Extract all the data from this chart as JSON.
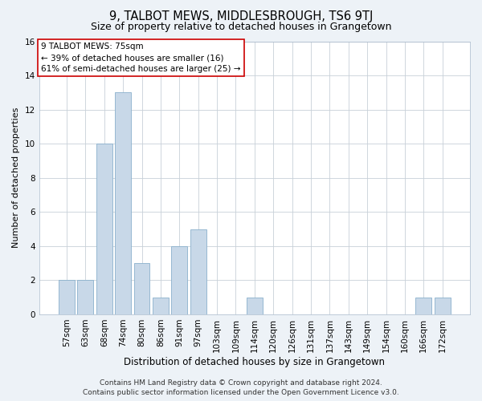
{
  "title": "9, TALBOT MEWS, MIDDLESBROUGH, TS6 9TJ",
  "subtitle": "Size of property relative to detached houses in Grangetown",
  "xlabel": "Distribution of detached houses by size in Grangetown",
  "ylabel": "Number of detached properties",
  "categories": [
    "57sqm",
    "63sqm",
    "68sqm",
    "74sqm",
    "80sqm",
    "86sqm",
    "91sqm",
    "97sqm",
    "103sqm",
    "109sqm",
    "114sqm",
    "120sqm",
    "126sqm",
    "131sqm",
    "137sqm",
    "143sqm",
    "149sqm",
    "154sqm",
    "160sqm",
    "166sqm",
    "172sqm"
  ],
  "values": [
    2,
    2,
    10,
    13,
    3,
    1,
    4,
    5,
    0,
    0,
    1,
    0,
    0,
    0,
    0,
    0,
    0,
    0,
    0,
    1,
    1
  ],
  "bar_color": "#c8d8e8",
  "bar_edge_color": "#8ab0cc",
  "ylim": [
    0,
    16
  ],
  "yticks": [
    0,
    2,
    4,
    6,
    8,
    10,
    12,
    14,
    16
  ],
  "annotation_line1": "9 TALBOT MEWS: 75sqm",
  "annotation_line2": "← 39% of detached houses are smaller (16)",
  "annotation_line3": "61% of semi-detached houses are larger (25) →",
  "annotation_box_color": "#ffffff",
  "annotation_box_edge_color": "#cc0000",
  "footer_line1": "Contains HM Land Registry data © Crown copyright and database right 2024.",
  "footer_line2": "Contains public sector information licensed under the Open Government Licence v3.0.",
  "bg_color": "#edf2f7",
  "plot_bg_color": "#ffffff",
  "grid_color": "#c8d0d8",
  "title_fontsize": 10.5,
  "subtitle_fontsize": 9,
  "xlabel_fontsize": 8.5,
  "ylabel_fontsize": 8,
  "tick_fontsize": 7.5,
  "annotation_fontsize": 7.5,
  "footer_fontsize": 6.5
}
